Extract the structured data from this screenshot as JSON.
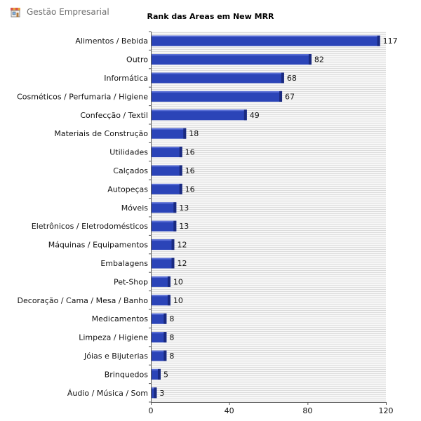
{
  "app": {
    "title": "Gestão Empresarial",
    "icon": "store-icon"
  },
  "colors": {
    "bar_fill": "#2b44b8",
    "bar_edge_dark": "#1a2a80",
    "bar_highlight": "#5a6fd6",
    "grid_line": "#dcdcdc",
    "axis": "#555555"
  },
  "chart_data": {
    "type": "bar",
    "orientation": "horizontal",
    "title": "Rank das Areas em New MRR",
    "xlabel": "",
    "ylabel": "",
    "xlim": [
      0,
      120
    ],
    "xticks": [
      0,
      40,
      80,
      120
    ],
    "grid": "horizontal-striped",
    "legend": "none",
    "categories": [
      "Alimentos / Bebida",
      "Outro",
      "Informática",
      "Cosméticos / Perfumaria / Higiene",
      "Confecção / Textil",
      "Materiais de Construção",
      "Utilidades",
      "Calçados",
      "Autopeças",
      "Móveis",
      "Eletrônicos / Eletrodomésticos",
      "Máquinas / Equipamentos",
      "Embalagens",
      "Pet-Shop",
      "Decoração / Cama / Mesa / Banho",
      "Medicamentos",
      "Limpeza / Higiene",
      "Jóias e Bijuterias",
      "Brinquedos",
      "Áudio / Música / Som"
    ],
    "values": [
      117,
      82,
      68,
      67,
      49,
      18,
      16,
      16,
      16,
      13,
      13,
      12,
      12,
      10,
      10,
      8,
      8,
      8,
      5,
      3
    ]
  }
}
